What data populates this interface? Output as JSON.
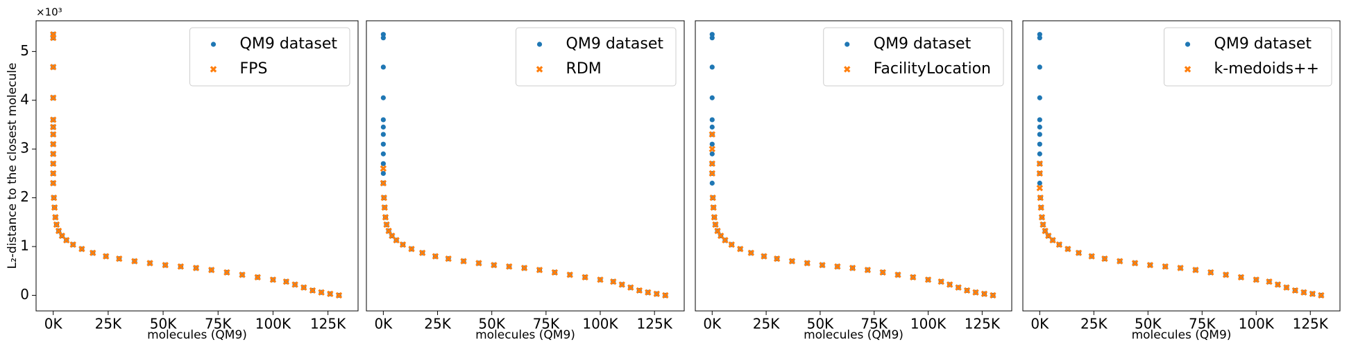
{
  "chart_data": [
    {
      "type": "scatter",
      "x_label": "molecules (QM9)",
      "y_label": "L₂-distance to the closest molecule",
      "y_offset_label": "×10³",
      "xlim": [
        -7800,
        138700
      ],
      "ylim": [
        -0.32,
        5.63
      ],
      "xticks": [
        {
          "value": 0,
          "label": "0K"
        },
        {
          "value": 25000,
          "label": "25K"
        },
        {
          "value": 50000,
          "label": "50K"
        },
        {
          "value": 75000,
          "label": "75K"
        },
        {
          "value": 100000,
          "label": "100K"
        },
        {
          "value": 125000,
          "label": "125K"
        }
      ],
      "yticks": [
        0,
        1,
        2,
        3,
        4,
        5
      ],
      "legend": "upper right",
      "series": [
        {
          "name": "QM9 dataset",
          "color": "#1f77b4",
          "marker": "circle",
          "x": [
            0,
            0,
            0,
            0,
            0,
            0,
            0,
            0,
            0,
            0,
            0,
            0,
            300,
            600,
            1000,
            1500,
            2500,
            4000,
            6000,
            9000,
            13000,
            18000,
            24000,
            30000,
            37000,
            44000,
            51000,
            58000,
            65000,
            72000,
            79000,
            86000,
            93000,
            100000,
            106000,
            110000,
            114000,
            118000,
            122000,
            126000,
            130000
          ],
          "values": [
            5.35,
            5.28,
            4.68,
            4.05,
            3.6,
            3.45,
            3.3,
            3.1,
            2.9,
            2.7,
            2.5,
            2.3,
            2.0,
            1.8,
            1.6,
            1.45,
            1.32,
            1.22,
            1.13,
            1.04,
            0.95,
            0.87,
            0.8,
            0.75,
            0.7,
            0.66,
            0.62,
            0.59,
            0.56,
            0.52,
            0.47,
            0.42,
            0.37,
            0.32,
            0.28,
            0.22,
            0.16,
            0.1,
            0.06,
            0.03,
            0.0
          ]
        },
        {
          "name": "FPS",
          "color": "#ff7f0e",
          "marker": "x",
          "x": [
            0,
            0,
            0,
            0,
            0,
            0,
            0,
            0,
            0,
            0,
            0,
            0,
            300,
            600,
            1000,
            1500,
            2500,
            4000,
            6000,
            9000,
            13000,
            18000,
            24000,
            30000,
            37000,
            44000,
            51000,
            58000,
            65000,
            72000,
            79000,
            86000,
            93000,
            100000,
            106000,
            110000,
            114000,
            118000,
            122000,
            126000,
            130000
          ],
          "values": [
            5.35,
            5.28,
            4.68,
            4.05,
            3.6,
            3.45,
            3.3,
            3.1,
            2.9,
            2.7,
            2.5,
            2.3,
            2.0,
            1.8,
            1.6,
            1.45,
            1.32,
            1.22,
            1.13,
            1.04,
            0.95,
            0.87,
            0.8,
            0.75,
            0.7,
            0.66,
            0.62,
            0.59,
            0.56,
            0.52,
            0.47,
            0.42,
            0.37,
            0.32,
            0.28,
            0.22,
            0.16,
            0.1,
            0.06,
            0.03,
            0.0
          ]
        }
      ]
    },
    {
      "type": "scatter",
      "x_label": "molecules (QM9)",
      "xlim": [
        -7800,
        138700
      ],
      "ylim": [
        -0.32,
        5.63
      ],
      "xticks": [
        {
          "value": 0,
          "label": "0K"
        },
        {
          "value": 25000,
          "label": "25K"
        },
        {
          "value": 50000,
          "label": "50K"
        },
        {
          "value": 75000,
          "label": "75K"
        },
        {
          "value": 100000,
          "label": "100K"
        },
        {
          "value": 125000,
          "label": "125K"
        }
      ],
      "legend": "upper right",
      "series": [
        {
          "name": "QM9 dataset",
          "color": "#1f77b4",
          "marker": "circle",
          "x": [
            0,
            0,
            0,
            0,
            0,
            0,
            0,
            0,
            0,
            0,
            0,
            0,
            300,
            600,
            1000,
            1500,
            2500,
            4000,
            6000,
            9000,
            13000,
            18000,
            24000,
            30000,
            37000,
            44000,
            51000,
            58000,
            65000,
            72000,
            79000,
            86000,
            93000,
            100000,
            106000,
            110000,
            114000,
            118000,
            122000,
            126000,
            130000
          ],
          "values": [
            5.35,
            5.28,
            4.68,
            4.05,
            3.6,
            3.45,
            3.3,
            3.1,
            2.9,
            2.7,
            2.5,
            2.3,
            2.0,
            1.8,
            1.6,
            1.45,
            1.32,
            1.22,
            1.13,
            1.04,
            0.95,
            0.87,
            0.8,
            0.75,
            0.7,
            0.66,
            0.62,
            0.59,
            0.56,
            0.52,
            0.47,
            0.42,
            0.37,
            0.32,
            0.28,
            0.22,
            0.16,
            0.1,
            0.06,
            0.03,
            0.0
          ]
        },
        {
          "name": "RDM",
          "color": "#ff7f0e",
          "marker": "x",
          "x": [
            0,
            0,
            300,
            600,
            1000,
            1500,
            2500,
            4000,
            6000,
            9000,
            13000,
            18000,
            24000,
            30000,
            37000,
            44000,
            51000,
            58000,
            65000,
            72000,
            79000,
            86000,
            93000,
            100000,
            106000,
            110000,
            114000,
            118000,
            122000,
            126000,
            130000
          ],
          "values": [
            2.6,
            2.3,
            2.0,
            1.8,
            1.6,
            1.45,
            1.32,
            1.22,
            1.13,
            1.04,
            0.95,
            0.87,
            0.8,
            0.75,
            0.7,
            0.66,
            0.62,
            0.59,
            0.56,
            0.52,
            0.47,
            0.42,
            0.37,
            0.32,
            0.28,
            0.22,
            0.16,
            0.1,
            0.06,
            0.03,
            0.0
          ]
        }
      ]
    },
    {
      "type": "scatter",
      "x_label": "molecules (QM9)",
      "xlim": [
        -7800,
        138700
      ],
      "ylim": [
        -0.32,
        5.63
      ],
      "xticks": [
        {
          "value": 0,
          "label": "0K"
        },
        {
          "value": 25000,
          "label": "25K"
        },
        {
          "value": 50000,
          "label": "50K"
        },
        {
          "value": 75000,
          "label": "75K"
        },
        {
          "value": 100000,
          "label": "100K"
        },
        {
          "value": 125000,
          "label": "125K"
        }
      ],
      "legend": "upper right",
      "series": [
        {
          "name": "QM9 dataset",
          "color": "#1f77b4",
          "marker": "circle",
          "x": [
            0,
            0,
            0,
            0,
            0,
            0,
            0,
            0,
            0,
            0,
            0,
            0,
            300,
            600,
            1000,
            1500,
            2500,
            4000,
            6000,
            9000,
            13000,
            18000,
            24000,
            30000,
            37000,
            44000,
            51000,
            58000,
            65000,
            72000,
            79000,
            86000,
            93000,
            100000,
            106000,
            110000,
            114000,
            118000,
            122000,
            126000,
            130000
          ],
          "values": [
            5.35,
            5.28,
            4.68,
            4.05,
            3.6,
            3.45,
            3.3,
            3.1,
            2.9,
            2.7,
            2.5,
            2.3,
            2.0,
            1.8,
            1.6,
            1.45,
            1.32,
            1.22,
            1.13,
            1.04,
            0.95,
            0.87,
            0.8,
            0.75,
            0.7,
            0.66,
            0.62,
            0.59,
            0.56,
            0.52,
            0.47,
            0.42,
            0.37,
            0.32,
            0.28,
            0.22,
            0.16,
            0.1,
            0.06,
            0.03,
            0.0
          ]
        },
        {
          "name": "FacilityLocation",
          "color": "#ff7f0e",
          "marker": "x",
          "x": [
            0,
            0,
            0,
            0,
            300,
            600,
            1000,
            1500,
            2500,
            4000,
            6000,
            9000,
            13000,
            18000,
            24000,
            30000,
            37000,
            44000,
            51000,
            58000,
            65000,
            72000,
            79000,
            86000,
            93000,
            100000,
            106000,
            110000,
            114000,
            118000,
            122000,
            126000,
            130000
          ],
          "values": [
            3.3,
            3.0,
            2.7,
            2.5,
            2.0,
            1.8,
            1.6,
            1.45,
            1.32,
            1.22,
            1.13,
            1.04,
            0.95,
            0.87,
            0.8,
            0.75,
            0.7,
            0.66,
            0.62,
            0.59,
            0.56,
            0.52,
            0.47,
            0.42,
            0.37,
            0.32,
            0.28,
            0.22,
            0.16,
            0.1,
            0.06,
            0.03,
            0.0
          ]
        }
      ]
    },
    {
      "type": "scatter",
      "x_label": "molecules (QM9)",
      "xlim": [
        -7800,
        138700
      ],
      "ylim": [
        -0.32,
        5.63
      ],
      "xticks": [
        {
          "value": 0,
          "label": "0K"
        },
        {
          "value": 25000,
          "label": "25K"
        },
        {
          "value": 50000,
          "label": "50K"
        },
        {
          "value": 75000,
          "label": "75K"
        },
        {
          "value": 100000,
          "label": "100K"
        },
        {
          "value": 125000,
          "label": "125K"
        }
      ],
      "legend": "upper right",
      "series": [
        {
          "name": "QM9 dataset",
          "color": "#1f77b4",
          "marker": "circle",
          "x": [
            0,
            0,
            0,
            0,
            0,
            0,
            0,
            0,
            0,
            0,
            0,
            0,
            300,
            600,
            1000,
            1500,
            2500,
            4000,
            6000,
            9000,
            13000,
            18000,
            24000,
            30000,
            37000,
            44000,
            51000,
            58000,
            65000,
            72000,
            79000,
            86000,
            93000,
            100000,
            106000,
            110000,
            114000,
            118000,
            122000,
            126000,
            130000
          ],
          "values": [
            5.35,
            5.28,
            4.68,
            4.05,
            3.6,
            3.45,
            3.3,
            3.1,
            2.9,
            2.7,
            2.5,
            2.3,
            2.0,
            1.8,
            1.6,
            1.45,
            1.32,
            1.22,
            1.13,
            1.04,
            0.95,
            0.87,
            0.8,
            0.75,
            0.7,
            0.66,
            0.62,
            0.59,
            0.56,
            0.52,
            0.47,
            0.42,
            0.37,
            0.32,
            0.28,
            0.22,
            0.16,
            0.1,
            0.06,
            0.03,
            0.0
          ]
        },
        {
          "name": "k-medoids++",
          "color": "#ff7f0e",
          "marker": "x",
          "x": [
            0,
            0,
            0,
            300,
            600,
            1000,
            1500,
            2500,
            4000,
            6000,
            9000,
            13000,
            18000,
            24000,
            30000,
            37000,
            44000,
            51000,
            58000,
            65000,
            72000,
            79000,
            86000,
            93000,
            100000,
            106000,
            110000,
            114000,
            118000,
            122000,
            126000,
            130000
          ],
          "values": [
            2.7,
            2.5,
            2.2,
            2.0,
            1.8,
            1.6,
            1.45,
            1.32,
            1.22,
            1.13,
            1.04,
            0.95,
            0.87,
            0.8,
            0.75,
            0.7,
            0.66,
            0.62,
            0.59,
            0.56,
            0.52,
            0.47,
            0.42,
            0.37,
            0.32,
            0.28,
            0.22,
            0.16,
            0.1,
            0.06,
            0.03,
            0.0
          ]
        }
      ]
    }
  ]
}
